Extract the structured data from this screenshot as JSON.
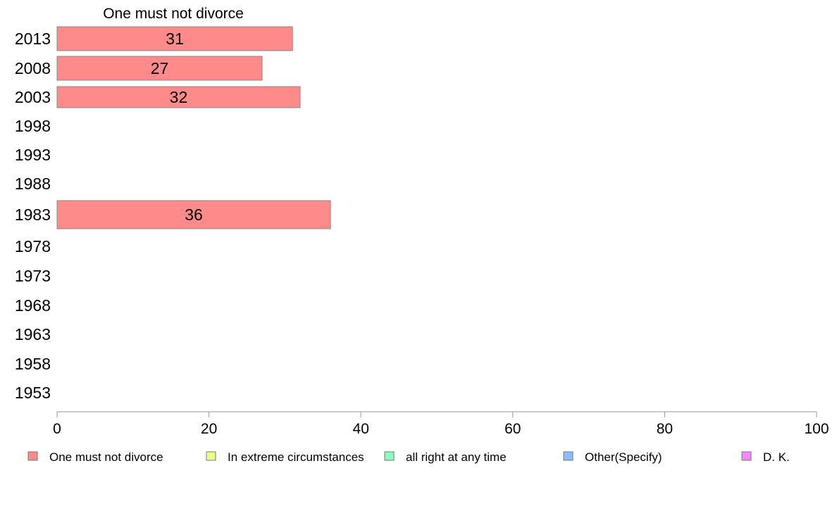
{
  "chart_data": {
    "type": "bar",
    "orientation": "horizontal",
    "title": "One must not divorce",
    "categories": [
      "2013",
      "2008",
      "2003",
      "1998",
      "1993",
      "1988",
      "1983",
      "1978",
      "1973",
      "1968",
      "1963",
      "1958",
      "1953"
    ],
    "series": [
      {
        "name": "One must not divorce",
        "color": "#ff8a8a",
        "values": [
          31,
          27,
          32,
          null,
          null,
          null,
          36,
          null,
          null,
          null,
          null,
          null,
          null
        ],
        "labels": [
          "31",
          "27",
          "32",
          "",
          "",
          "",
          "36",
          "",
          "",
          "",
          "",
          "",
          ""
        ]
      }
    ],
    "xlim": [
      0,
      100
    ],
    "xticks": [
      "0",
      "20",
      "40",
      "60",
      "80",
      "100"
    ],
    "xlabel": "",
    "ylabel": "",
    "grid": false,
    "legend_position": "bottom",
    "legend": [
      {
        "label": "One must not divorce",
        "color": "#ff8a8a"
      },
      {
        "label": "In extreme circumstances",
        "color": "#eeff8a"
      },
      {
        "label": "all right at any time",
        "color": "#8affbd"
      },
      {
        "label": "Other(Specify)",
        "color": "#8abcff"
      },
      {
        "label": "D. K.",
        "color": "#f28aff"
      }
    ],
    "bar_border_color": "#888888",
    "axis_color": "#999999"
  }
}
